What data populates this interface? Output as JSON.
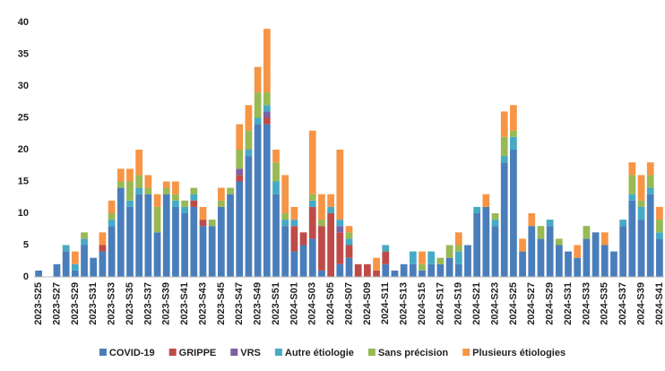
{
  "chart_data": {
    "type": "stacked-bar",
    "categories": [
      "2023-S25",
      null,
      "2023-S27",
      null,
      "2023-S29",
      null,
      "2023-S31",
      null,
      "2023-S33",
      null,
      "2023-S35",
      null,
      "2023-S37",
      null,
      "2023-S39",
      null,
      "2023-S41",
      null,
      "2023-S43",
      null,
      "2023-S45",
      null,
      "2023-S47",
      null,
      "2023-S49",
      null,
      "2023-S51",
      null,
      "2024-S01",
      null,
      "2024-S03",
      null,
      "2024-S05",
      null,
      "2024-S07",
      null,
      "2024-S09",
      null,
      "2024-S11",
      null,
      "2024-S13",
      null,
      "2024-S15",
      null,
      "2024-S17",
      null,
      "2024-S19",
      null,
      "2024-S21",
      null,
      "2024-S23",
      null,
      "2024-S25",
      null,
      "2024-S27",
      null,
      "2024-S29",
      null,
      "2024-S31",
      null,
      "2024-S33",
      null,
      "2024-S35",
      null,
      "2024-S37",
      null,
      "2024-S39",
      null,
      "2024-S41"
    ],
    "series": [
      {
        "name": "COVID-19",
        "color": "#4a7ebb",
        "values": [
          1,
          0,
          2,
          4,
          1,
          5,
          3,
          4,
          8,
          14,
          11,
          13,
          13,
          7,
          13,
          11,
          10,
          11,
          8,
          8,
          11,
          13,
          15,
          19,
          24,
          24,
          13,
          8,
          4,
          5,
          6,
          1,
          0,
          2,
          3,
          0,
          0,
          0,
          2,
          1,
          2,
          2,
          1,
          2,
          2,
          3,
          2,
          5,
          10,
          11,
          8,
          18,
          20,
          4,
          8,
          6,
          8,
          5,
          4,
          3,
          6,
          7,
          5,
          4,
          8,
          12,
          9,
          13,
          6
        ]
      },
      {
        "name": "GRIPPE",
        "color": "#be4b48",
        "values": [
          0,
          0,
          0,
          0,
          0,
          0,
          0,
          1,
          0,
          0,
          0,
          0,
          0,
          0,
          0,
          0,
          0,
          1,
          1,
          0,
          0,
          0,
          1,
          0,
          0,
          1,
          0,
          0,
          4,
          2,
          5,
          7,
          10,
          5,
          2,
          2,
          2,
          1,
          2,
          0,
          0,
          0,
          0,
          0,
          0,
          0,
          0,
          0,
          0,
          0,
          0,
          0,
          0,
          0,
          0,
          0,
          0,
          0,
          0,
          0,
          0,
          0,
          0,
          0,
          0,
          0,
          0,
          0,
          0
        ]
      },
      {
        "name": "VRS",
        "color": "#7d60a0",
        "values": [
          0,
          0,
          0,
          0,
          0,
          0,
          0,
          0,
          0,
          0,
          0,
          0,
          0,
          0,
          0,
          0,
          0,
          0,
          0,
          0,
          0,
          0,
          1,
          0,
          0,
          1,
          0,
          0,
          0,
          0,
          0,
          0,
          0,
          1,
          0,
          0,
          0,
          0,
          0,
          0,
          0,
          0,
          0,
          0,
          0,
          0,
          0,
          0,
          0,
          0,
          0,
          0,
          0,
          0,
          0,
          0,
          0,
          0,
          0,
          0,
          0,
          0,
          0,
          0,
          0,
          0,
          0,
          0,
          0
        ]
      },
      {
        "name": "Autre étiologie",
        "color": "#46aac5",
        "values": [
          0,
          0,
          0,
          1,
          1,
          1,
          0,
          0,
          1,
          0,
          1,
          1,
          0,
          0,
          0,
          1,
          1,
          1,
          0,
          0,
          0,
          0,
          0,
          1,
          1,
          1,
          2,
          1,
          1,
          0,
          1,
          0,
          1,
          1,
          1,
          0,
          0,
          0,
          1,
          0,
          0,
          2,
          0,
          2,
          0,
          0,
          2,
          0,
          1,
          0,
          1,
          1,
          2,
          0,
          0,
          0,
          1,
          0,
          0,
          0,
          0,
          0,
          0,
          0,
          1,
          1,
          2,
          1,
          1
        ]
      },
      {
        "name": "Sans précision",
        "color": "#98b954",
        "values": [
          0,
          0,
          0,
          0,
          0,
          1,
          0,
          0,
          1,
          1,
          3,
          2,
          1,
          4,
          1,
          1,
          1,
          1,
          0,
          1,
          1,
          1,
          3,
          3,
          4,
          2,
          3,
          1,
          0,
          0,
          1,
          1,
          0,
          0,
          1,
          0,
          0,
          0,
          0,
          0,
          0,
          0,
          1,
          0,
          1,
          2,
          1,
          0,
          0,
          0,
          1,
          3,
          1,
          0,
          0,
          2,
          0,
          1,
          0,
          0,
          2,
          0,
          0,
          0,
          0,
          3,
          1,
          2,
          2
        ]
      },
      {
        "name": "Plusieurs étiologies",
        "color": "#f69545",
        "values": [
          0,
          0,
          0,
          0,
          2,
          0,
          0,
          2,
          2,
          2,
          2,
          4,
          2,
          2,
          1,
          2,
          0,
          0,
          2,
          0,
          2,
          0,
          4,
          4,
          4,
          10,
          2,
          6,
          2,
          0,
          10,
          4,
          2,
          11,
          1,
          0,
          0,
          2,
          0,
          0,
          0,
          0,
          2,
          0,
          0,
          0,
          2,
          0,
          0,
          2,
          0,
          4,
          4,
          2,
          2,
          0,
          0,
          0,
          0,
          2,
          0,
          0,
          2,
          0,
          0,
          2,
          4,
          2,
          2
        ]
      }
    ],
    "ylim": [
      0,
      40
    ],
    "yticks": [
      0,
      5,
      10,
      15,
      20,
      25,
      30,
      35,
      40
    ],
    "grid": false,
    "legend": "bottom"
  }
}
